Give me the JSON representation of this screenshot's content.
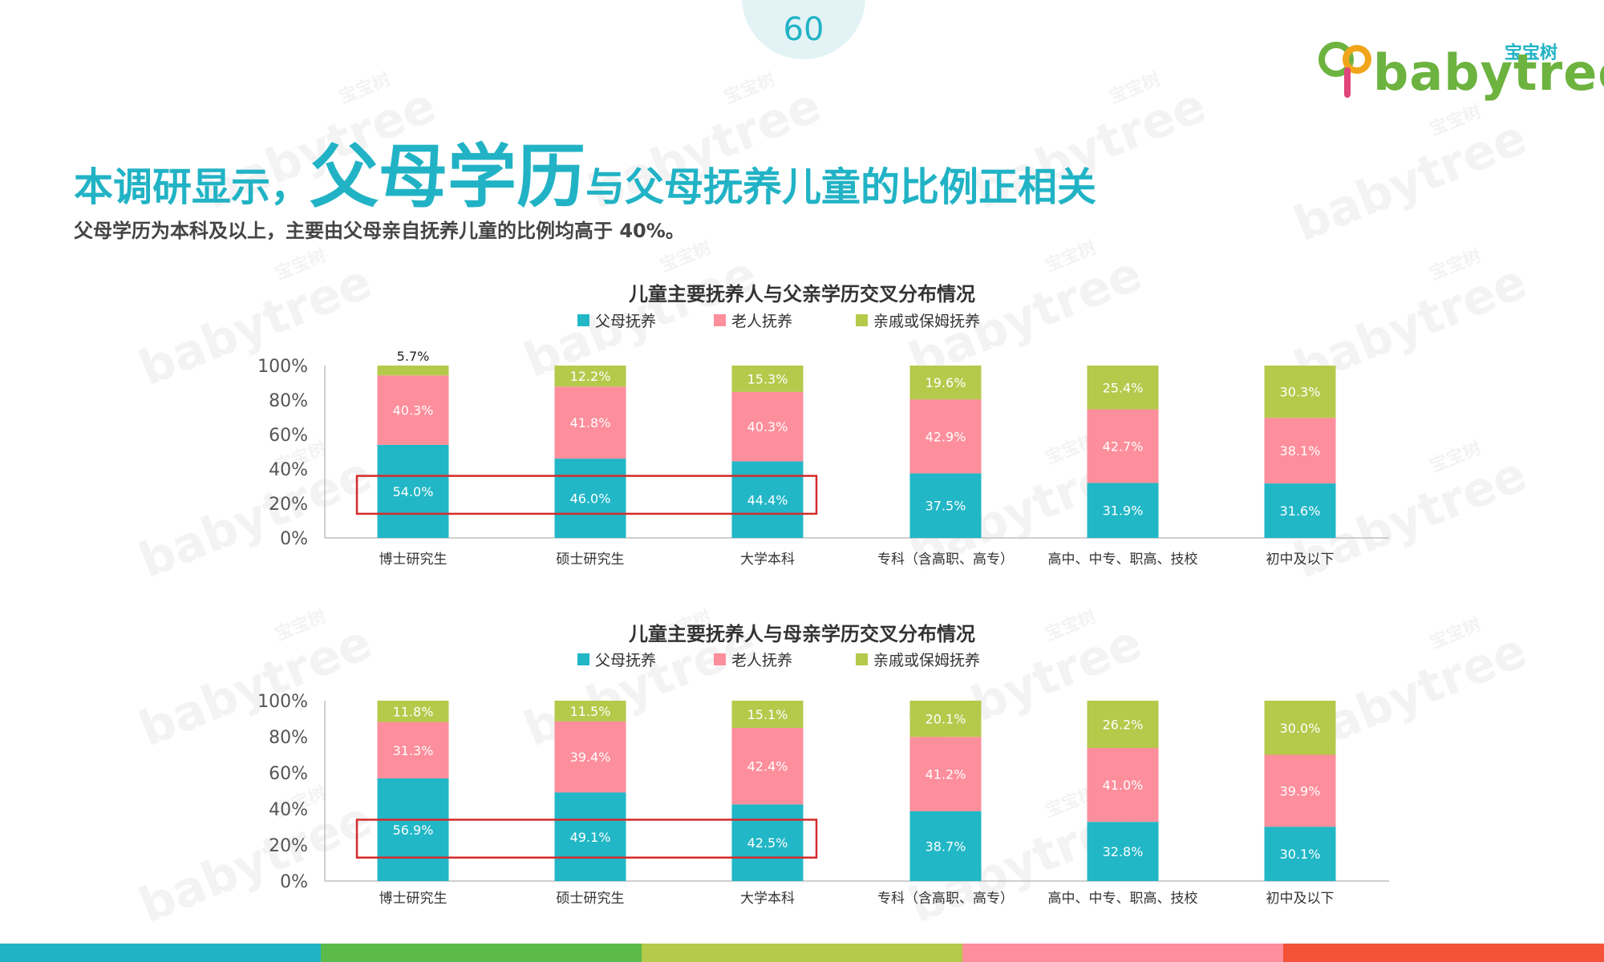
{
  "page_number": "60",
  "logo": {
    "cn": "宝宝树",
    "en": "babytree"
  },
  "watermark": {
    "cn": "宝宝树",
    "en": "babytree"
  },
  "title": {
    "part1": "本调研显示，",
    "part2": "父母学历",
    "part3": "与父母抚养儿童的比例正相关"
  },
  "subtitle": "父母学历为本科及以上，主要由父母亲自抚养儿童的比例均高于 40%。",
  "colors": {
    "accent": "#21b3c5",
    "parents": "#21b7c6",
    "grandparents": "#fd8e9b",
    "relatives": "#b5c94b",
    "highlight_box": "#d42b2b"
  },
  "bottom_stripe": [
    "#21b3c5",
    "#5cba4a",
    "#b5c94b",
    "#fd8e9b",
    "#f4533a"
  ],
  "chart_data": [
    {
      "type": "bar",
      "stacked": true,
      "title": "儿童主要抚养人与父亲学历交叉分布情况",
      "categories": [
        "博士研究生",
        "硕士研究生",
        "大学本科",
        "专科（含高职、高专）",
        "高中、中专、职高、技校",
        "初中及以下"
      ],
      "series": [
        {
          "name": "父母抚养",
          "values": [
            54.0,
            46.0,
            44.4,
            37.5,
            31.9,
            31.6
          ],
          "labels": [
            "54.0%",
            "46.0%",
            "44.4%",
            "37.5%",
            "31.9%",
            "31.6%"
          ]
        },
        {
          "name": "老人抚养",
          "values": [
            40.3,
            41.8,
            40.3,
            42.9,
            42.7,
            38.1
          ],
          "labels": [
            "40.3%",
            "41.8%",
            "40.3%",
            "42.9%",
            "42.7%",
            "38.1%"
          ]
        },
        {
          "name": "亲戚或保姆抚养",
          "values": [
            5.7,
            12.2,
            15.3,
            19.6,
            25.4,
            30.3
          ],
          "labels": [
            "5.7%",
            "12.2%",
            "15.3%",
            "19.6%",
            "25.4%",
            "30.3%"
          ]
        }
      ],
      "yticks": [
        "0%",
        "20%",
        "40%",
        "60%",
        "80%",
        "100%"
      ],
      "ylim": [
        0,
        100
      ],
      "legend": "top",
      "highlight": {
        "from_category": 0,
        "to_category": 2,
        "range": [
          14,
          36
        ]
      }
    },
    {
      "type": "bar",
      "stacked": true,
      "title": "儿童主要抚养人与母亲学历交叉分布情况",
      "categories": [
        "博士研究生",
        "硕士研究生",
        "大学本科",
        "专科（含高职、高专）",
        "高中、中专、职高、技校",
        "初中及以下"
      ],
      "series": [
        {
          "name": "父母抚养",
          "values": [
            56.9,
            49.1,
            42.5,
            38.7,
            32.8,
            30.1
          ],
          "labels": [
            "56.9%",
            "49.1%",
            "42.5%",
            "38.7%",
            "32.8%",
            "30.1%"
          ]
        },
        {
          "name": "老人抚养",
          "values": [
            31.3,
            39.4,
            42.4,
            41.2,
            41.0,
            39.9
          ],
          "labels": [
            "31.3%",
            "39.4%",
            "42.4%",
            "41.2%",
            "41.0%",
            "39.9%"
          ]
        },
        {
          "name": "亲戚或保姆抚养",
          "values": [
            11.8,
            11.5,
            15.1,
            20.1,
            26.2,
            30.0
          ],
          "labels": [
            "11.8%",
            "11.5%",
            "15.1%",
            "20.1%",
            "26.2%",
            "30.0%"
          ]
        }
      ],
      "yticks": [
        "0%",
        "20%",
        "40%",
        "60%",
        "80%",
        "100%"
      ],
      "ylim": [
        0,
        100
      ],
      "legend": "top",
      "highlight": {
        "from_category": 0,
        "to_category": 2,
        "range": [
          13,
          34
        ]
      }
    }
  ]
}
